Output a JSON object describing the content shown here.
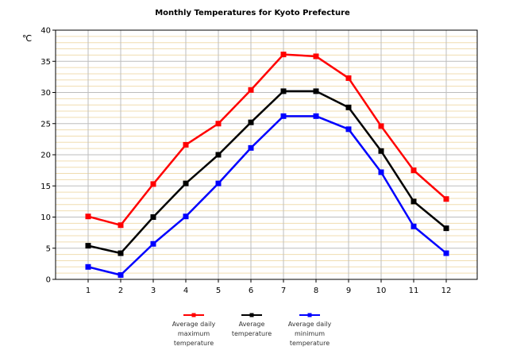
{
  "chart_data": {
    "type": "line",
    "title": "Monthly Temperatures for Kyoto Prefecture",
    "ylabel": "℃",
    "xlabel": "",
    "categories": [
      "1",
      "2",
      "3",
      "4",
      "5",
      "6",
      "7",
      "8",
      "9",
      "10",
      "11",
      "12"
    ],
    "ylim": [
      0,
      40
    ],
    "yticks": [
      "0",
      "5",
      "10",
      "15",
      "20",
      "25",
      "30",
      "35",
      "40"
    ],
    "grid": true,
    "legend_position": "bottom",
    "series": [
      {
        "name": "Average daily maximum temperature",
        "legend_lines": [
          "Average daily",
          "maximum",
          "temperature"
        ],
        "color": "#ff0000",
        "values": [
          10.1,
          8.7,
          15.3,
          21.6,
          25.0,
          30.4,
          36.1,
          35.8,
          32.3,
          24.6,
          17.5,
          12.9
        ]
      },
      {
        "name": "Average temperature",
        "legend_lines": [
          "Average",
          "temperature"
        ],
        "color": "#000000",
        "values": [
          5.4,
          4.2,
          10.0,
          15.4,
          20.0,
          25.2,
          30.2,
          30.2,
          27.6,
          20.6,
          12.5,
          8.2
        ]
      },
      {
        "name": "Average daily minimum temperature",
        "legend_lines": [
          "Average daily",
          "minimum",
          "temperature"
        ],
        "color": "#0000ff",
        "values": [
          2.0,
          0.7,
          5.7,
          10.1,
          15.4,
          21.1,
          26.2,
          26.2,
          24.1,
          17.2,
          8.5,
          4.2
        ]
      }
    ]
  }
}
